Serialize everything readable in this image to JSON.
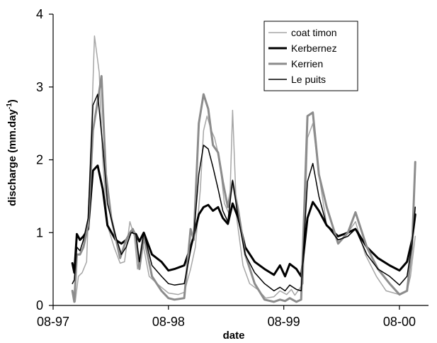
{
  "chart_data": {
    "type": "line",
    "xlabel": "date",
    "ylabel_main": "discharge (mm.day",
    "ylabel_sup": "-1",
    "ylabel_close": ")",
    "ylim": [
      0,
      4
    ],
    "yticks": [
      "0",
      "1",
      "2",
      "3",
      "4"
    ],
    "xticks": [
      {
        "date": "1997-08-01",
        "label": "08-97"
      },
      {
        "date": "1998-08-01",
        "label": "08-98"
      },
      {
        "date": "1999-08-01",
        "label": "08-99"
      },
      {
        "date": "2000-08-01",
        "label": "08-00"
      }
    ],
    "xlim": [
      "1997-08-01",
      "2000-11-01"
    ],
    "grid": false,
    "legend_position": "top-right",
    "series": [
      {
        "name": "coat timon",
        "color": "#a6a6a6",
        "width": 1.5,
        "points": [
          [
            "1997-10-01",
            0.18
          ],
          [
            "1997-10-10",
            0.05
          ],
          [
            "1997-10-20",
            0.4
          ],
          [
            "1997-11-01",
            0.45
          ],
          [
            "1997-11-15",
            0.6
          ],
          [
            "1997-12-01",
            2.5
          ],
          [
            "1997-12-10",
            3.7
          ],
          [
            "1997-12-25",
            3.2
          ],
          [
            "1998-01-05",
            2.0
          ],
          [
            "1998-01-20",
            1.1
          ],
          [
            "1998-02-10",
            0.8
          ],
          [
            "1998-03-01",
            0.58
          ],
          [
            "1998-03-15",
            0.6
          ],
          [
            "1998-04-01",
            1.15
          ],
          [
            "1998-04-15",
            0.95
          ],
          [
            "1998-04-25",
            0.5
          ],
          [
            "1998-05-10",
            0.9
          ],
          [
            "1998-06-01",
            0.4
          ],
          [
            "1998-07-01",
            0.28
          ],
          [
            "1998-08-01",
            0.17
          ],
          [
            "1998-09-01",
            0.15
          ],
          [
            "1998-09-20",
            0.18
          ],
          [
            "1998-10-10",
            0.5
          ],
          [
            "1998-10-25",
            0.8
          ],
          [
            "1998-11-10",
            1.6
          ],
          [
            "1998-11-20",
            2.4
          ],
          [
            "1998-12-01",
            2.6
          ],
          [
            "1998-12-15",
            2.4
          ],
          [
            "1998-12-25",
            2.3
          ],
          [
            "1999-01-10",
            2.0
          ],
          [
            "1999-01-25",
            1.4
          ],
          [
            "1999-02-10",
            1.25
          ],
          [
            "1999-02-20",
            2.68
          ],
          [
            "1999-03-05",
            1.2
          ],
          [
            "1999-03-25",
            0.55
          ],
          [
            "1999-04-15",
            0.3
          ],
          [
            "1999-05-10",
            0.22
          ],
          [
            "1999-06-05",
            0.1
          ],
          [
            "1999-07-01",
            0.12
          ],
          [
            "1999-07-20",
            0.2
          ],
          [
            "1999-08-10",
            0.15
          ],
          [
            "1999-08-25",
            0.22
          ],
          [
            "1999-09-05",
            0.14
          ],
          [
            "1999-10-01",
            0.3
          ],
          [
            "1999-10-15",
            2.3
          ],
          [
            "1999-11-01",
            2.5
          ],
          [
            "1999-11-20",
            1.8
          ],
          [
            "1999-12-15",
            1.1
          ],
          [
            "2000-01-20",
            0.95
          ],
          [
            "2000-02-20",
            1.0
          ],
          [
            "2000-03-15",
            1.15
          ],
          [
            "2000-04-15",
            0.7
          ],
          [
            "2000-05-20",
            0.4
          ],
          [
            "2000-06-20",
            0.2
          ],
          [
            "2000-08-01",
            0.15
          ],
          [
            "2000-08-25",
            0.2
          ],
          [
            "2000-09-05",
            0.4
          ],
          [
            "2000-09-20",
            0.95
          ]
        ]
      },
      {
        "name": "Kerbernez",
        "color": "#000000",
        "width": 3,
        "points": [
          [
            "1997-10-01",
            0.58
          ],
          [
            "1997-10-07",
            0.45
          ],
          [
            "1997-10-15",
            0.98
          ],
          [
            "1997-10-25",
            0.9
          ],
          [
            "1997-11-05",
            0.95
          ],
          [
            "1997-11-20",
            1.05
          ],
          [
            "1997-12-05",
            1.85
          ],
          [
            "1997-12-20",
            1.92
          ],
          [
            "1998-01-05",
            1.6
          ],
          [
            "1998-01-20",
            1.1
          ],
          [
            "1998-02-15",
            0.9
          ],
          [
            "1998-03-05",
            0.85
          ],
          [
            "1998-03-20",
            0.9
          ],
          [
            "1998-04-05",
            1.02
          ],
          [
            "1998-04-20",
            0.98
          ],
          [
            "1998-05-01",
            0.88
          ],
          [
            "1998-05-15",
            1.0
          ],
          [
            "1998-06-10",
            0.7
          ],
          [
            "1998-07-10",
            0.6
          ],
          [
            "1998-08-01",
            0.48
          ],
          [
            "1998-08-20",
            0.5
          ],
          [
            "1998-09-20",
            0.55
          ],
          [
            "1998-10-10",
            0.8
          ],
          [
            "1998-10-20",
            0.95
          ],
          [
            "1998-11-05",
            1.25
          ],
          [
            "1998-11-20",
            1.35
          ],
          [
            "1998-12-05",
            1.38
          ],
          [
            "1998-12-20",
            1.3
          ],
          [
            "1999-01-05",
            1.35
          ],
          [
            "1999-01-20",
            1.2
          ],
          [
            "1999-02-05",
            1.12
          ],
          [
            "1999-02-20",
            1.4
          ],
          [
            "1999-03-10",
            1.2
          ],
          [
            "1999-04-01",
            0.8
          ],
          [
            "1999-05-01",
            0.6
          ],
          [
            "1999-06-01",
            0.5
          ],
          [
            "1999-07-01",
            0.42
          ],
          [
            "1999-07-20",
            0.55
          ],
          [
            "1999-08-05",
            0.4
          ],
          [
            "1999-08-20",
            0.57
          ],
          [
            "1999-09-10",
            0.5
          ],
          [
            "1999-09-25",
            0.4
          ],
          [
            "1999-10-15",
            1.2
          ],
          [
            "1999-11-01",
            1.42
          ],
          [
            "1999-11-20",
            1.3
          ],
          [
            "1999-12-15",
            1.1
          ],
          [
            "2000-01-20",
            0.95
          ],
          [
            "2000-02-20",
            1.0
          ],
          [
            "2000-03-15",
            1.05
          ],
          [
            "2000-04-20",
            0.8
          ],
          [
            "2000-05-25",
            0.65
          ],
          [
            "2000-07-01",
            0.55
          ],
          [
            "2000-08-01",
            0.48
          ],
          [
            "2000-08-25",
            0.6
          ],
          [
            "2000-09-10",
            0.9
          ],
          [
            "2000-09-20",
            1.25
          ]
        ]
      },
      {
        "name": "Kerrien",
        "color": "#8c8c8c",
        "width": 3,
        "points": [
          [
            "1997-10-01",
            0.2
          ],
          [
            "1997-10-07",
            0.05
          ],
          [
            "1997-10-15",
            0.7
          ],
          [
            "1997-10-25",
            0.7
          ],
          [
            "1997-11-05",
            0.8
          ],
          [
            "1997-11-20",
            1.1
          ],
          [
            "1997-12-05",
            2.4
          ],
          [
            "1997-12-20",
            2.8
          ],
          [
            "1998-01-01",
            3.15
          ],
          [
            "1998-01-15",
            1.8
          ],
          [
            "1998-02-01",
            1.2
          ],
          [
            "1998-03-01",
            0.65
          ],
          [
            "1998-03-20",
            0.9
          ],
          [
            "1998-04-10",
            1.05
          ],
          [
            "1998-04-20",
            0.95
          ],
          [
            "1998-05-01",
            0.5
          ],
          [
            "1998-05-15",
            0.95
          ],
          [
            "1998-06-10",
            0.4
          ],
          [
            "1998-07-10",
            0.2
          ],
          [
            "1998-08-01",
            0.1
          ],
          [
            "1998-08-20",
            0.08
          ],
          [
            "1998-09-20",
            0.1
          ],
          [
            "1998-10-10",
            1.05
          ],
          [
            "1998-10-20",
            0.9
          ],
          [
            "1998-11-05",
            2.5
          ],
          [
            "1998-11-20",
            2.9
          ],
          [
            "1998-12-05",
            2.7
          ],
          [
            "1998-12-20",
            2.2
          ],
          [
            "1999-01-05",
            2.1
          ],
          [
            "1999-01-20",
            1.7
          ],
          [
            "1999-02-05",
            1.35
          ],
          [
            "1999-02-20",
            1.7
          ],
          [
            "1999-03-10",
            1.3
          ],
          [
            "1999-04-01",
            0.7
          ],
          [
            "1999-05-01",
            0.3
          ],
          [
            "1999-06-01",
            0.08
          ],
          [
            "1999-07-01",
            0.05
          ],
          [
            "1999-07-20",
            0.08
          ],
          [
            "1999-08-05",
            0.06
          ],
          [
            "1999-08-20",
            0.1
          ],
          [
            "1999-09-10",
            0.05
          ],
          [
            "1999-09-25",
            0.08
          ],
          [
            "1999-10-15",
            2.6
          ],
          [
            "1999-11-01",
            2.65
          ],
          [
            "1999-11-20",
            1.8
          ],
          [
            "1999-12-15",
            1.35
          ],
          [
            "2000-01-20",
            0.85
          ],
          [
            "2000-02-20",
            1.0
          ],
          [
            "2000-03-15",
            1.28
          ],
          [
            "2000-04-20",
            0.8
          ],
          [
            "2000-05-25",
            0.5
          ],
          [
            "2000-07-01",
            0.3
          ],
          [
            "2000-08-01",
            0.15
          ],
          [
            "2000-08-25",
            0.2
          ],
          [
            "2000-09-10",
            0.8
          ],
          [
            "2000-09-20",
            1.97
          ]
        ]
      },
      {
        "name": "Le puits",
        "color": "#000000",
        "width": 1.5,
        "points": [
          [
            "1997-10-01",
            0.3
          ],
          [
            "1997-10-07",
            0.35
          ],
          [
            "1997-10-15",
            0.8
          ],
          [
            "1997-10-25",
            0.75
          ],
          [
            "1997-11-05",
            0.9
          ],
          [
            "1997-11-20",
            1.2
          ],
          [
            "1997-12-05",
            2.75
          ],
          [
            "1997-12-20",
            2.9
          ],
          [
            "1998-01-05",
            2.2
          ],
          [
            "1998-01-20",
            1.4
          ],
          [
            "1998-02-15",
            0.95
          ],
          [
            "1998-03-05",
            0.7
          ],
          [
            "1998-03-20",
            0.8
          ],
          [
            "1998-04-05",
            1.0
          ],
          [
            "1998-04-20",
            0.98
          ],
          [
            "1998-05-01",
            0.6
          ],
          [
            "1998-05-15",
            1.0
          ],
          [
            "1998-06-10",
            0.55
          ],
          [
            "1998-07-10",
            0.4
          ],
          [
            "1998-08-01",
            0.3
          ],
          [
            "1998-08-20",
            0.28
          ],
          [
            "1998-09-20",
            0.3
          ],
          [
            "1998-10-10",
            0.75
          ],
          [
            "1998-10-20",
            0.95
          ],
          [
            "1998-11-05",
            1.8
          ],
          [
            "1998-11-20",
            2.2
          ],
          [
            "1998-12-05",
            2.15
          ],
          [
            "1998-12-20",
            1.9
          ],
          [
            "1999-01-05",
            1.6
          ],
          [
            "1999-01-20",
            1.3
          ],
          [
            "1999-02-05",
            1.15
          ],
          [
            "1999-02-20",
            1.72
          ],
          [
            "1999-03-10",
            1.2
          ],
          [
            "1999-04-01",
            0.7
          ],
          [
            "1999-05-01",
            0.45
          ],
          [
            "1999-06-01",
            0.3
          ],
          [
            "1999-07-01",
            0.2
          ],
          [
            "1999-07-20",
            0.25
          ],
          [
            "1999-08-05",
            0.2
          ],
          [
            "1999-08-20",
            0.28
          ],
          [
            "1999-09-10",
            0.22
          ],
          [
            "1999-09-25",
            0.2
          ],
          [
            "1999-10-15",
            1.7
          ],
          [
            "1999-11-01",
            1.95
          ],
          [
            "1999-11-20",
            1.5
          ],
          [
            "1999-12-15",
            1.1
          ],
          [
            "2000-01-20",
            0.9
          ],
          [
            "2000-02-20",
            0.95
          ],
          [
            "2000-03-15",
            1.05
          ],
          [
            "2000-04-20",
            0.7
          ],
          [
            "2000-05-25",
            0.5
          ],
          [
            "2000-07-01",
            0.4
          ],
          [
            "2000-08-01",
            0.28
          ],
          [
            "2000-08-25",
            0.4
          ],
          [
            "2000-09-10",
            0.85
          ],
          [
            "2000-09-20",
            1.35
          ]
        ]
      }
    ]
  }
}
